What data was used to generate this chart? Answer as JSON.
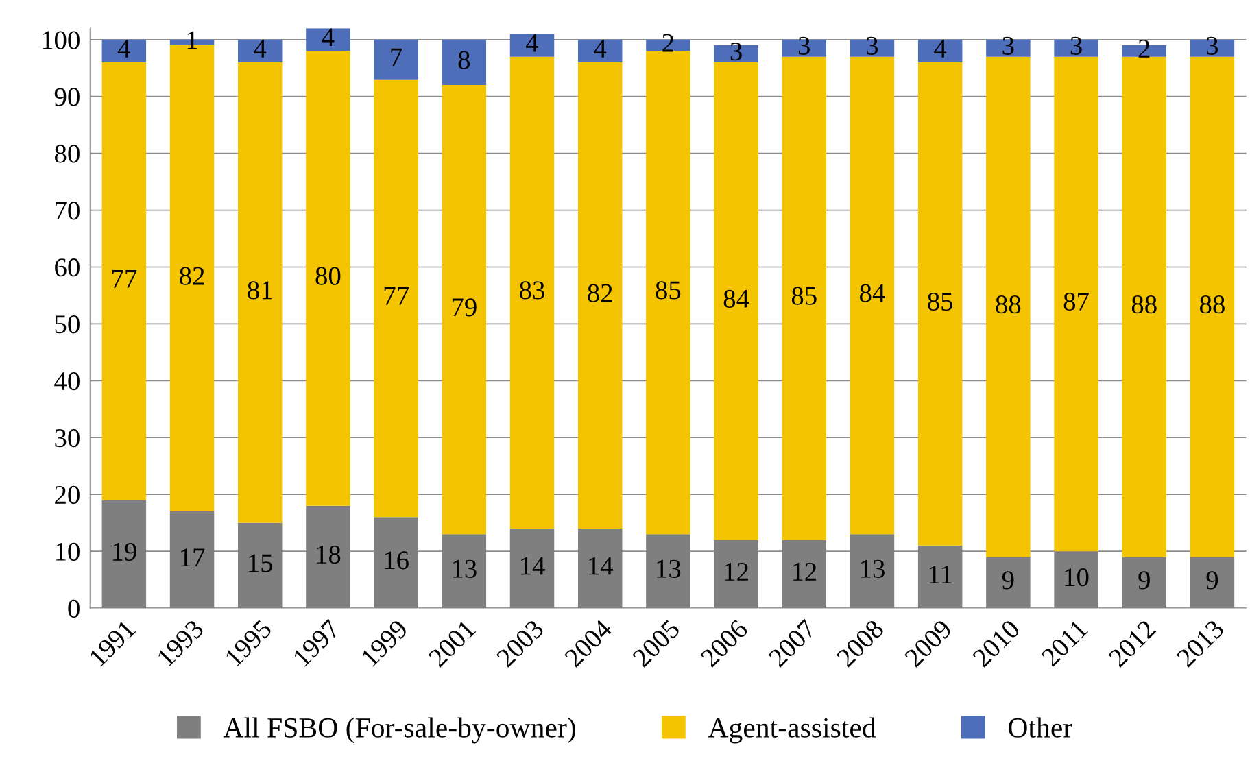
{
  "chart_data": {
    "type": "bar",
    "stacked": true,
    "data_labels": true,
    "grid": "y",
    "legend": "bottom",
    "categories": [
      "1991",
      "1993",
      "1995",
      "1997",
      "1999",
      "2001",
      "2003",
      "2004",
      "2005",
      "2006",
      "2007",
      "2008",
      "2009",
      "2010",
      "2011",
      "2012",
      "2013"
    ],
    "series": [
      {
        "name": "All FSBO (For-sale-by-owner)",
        "color": "#7f7f7f",
        "values": [
          19,
          17,
          15,
          18,
          16,
          13,
          14,
          14,
          13,
          12,
          12,
          13,
          11,
          9,
          10,
          9,
          9
        ]
      },
      {
        "name": "Agent-assisted",
        "color": "#f5c400",
        "values": [
          77,
          82,
          81,
          80,
          77,
          79,
          83,
          82,
          85,
          84,
          85,
          84,
          85,
          88,
          87,
          88,
          88
        ]
      },
      {
        "name": "Other",
        "color": "#4f6eb9",
        "values": [
          4,
          1,
          4,
          4,
          7,
          8,
          4,
          4,
          2,
          3,
          3,
          3,
          4,
          3,
          3,
          2,
          3
        ]
      }
    ],
    "ylim": [
      0,
      102
    ],
    "yticks": [
      0,
      10,
      20,
      30,
      40,
      50,
      60,
      70,
      80,
      90,
      100
    ]
  }
}
